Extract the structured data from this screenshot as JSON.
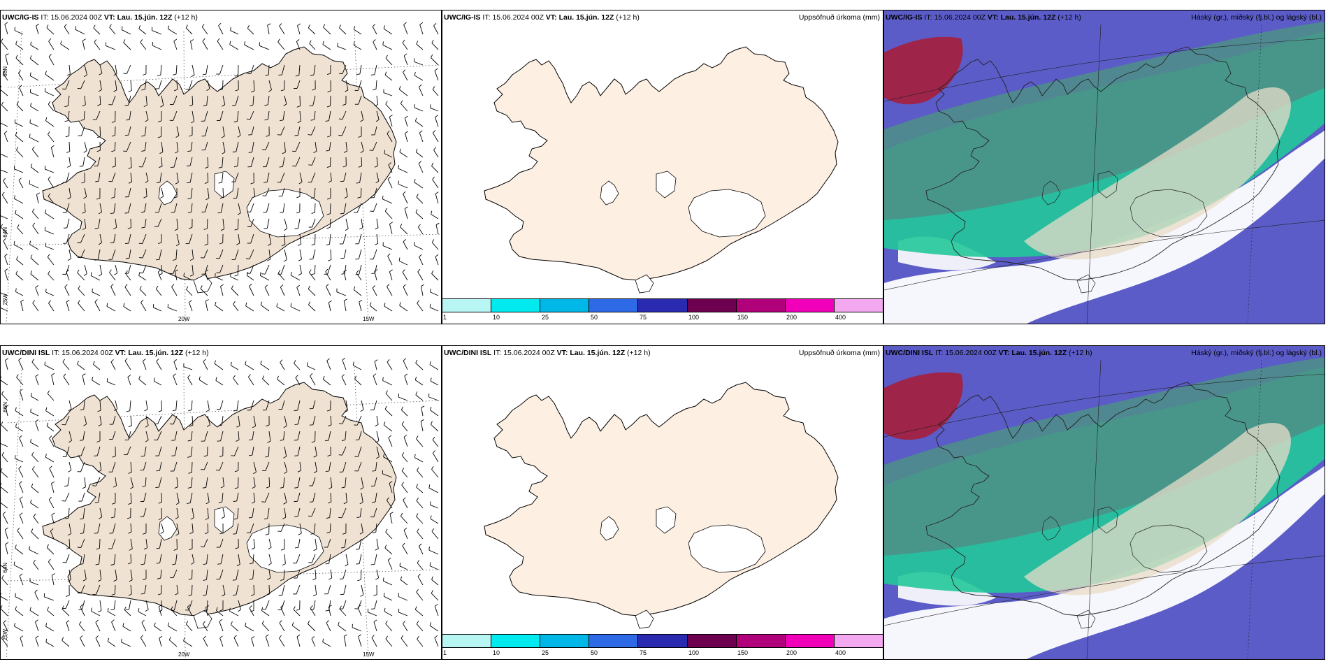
{
  "rows": [
    {
      "model": "UWC/IG-IS",
      "it_label": "IT:",
      "it_value": "15.06.2024 00Z",
      "vt_label": "VT:",
      "vt_value": "Lau. 15.jún. 12Z",
      "lead": "(+12 h)",
      "lon_labels": [
        "20W",
        "15W"
      ],
      "lat_labels": [
        "66N",
        "64N"
      ],
      "left_edge_label": "25W"
    },
    {
      "model": "UWC/DINI ISL",
      "it_label": "IT:",
      "it_value": "15.06.2024 00Z",
      "vt_label": "VT:",
      "vt_value": "Lau. 15.jún. 12Z",
      "lead": "(+12 h)",
      "lon_labels": [
        "20W",
        "15W"
      ],
      "lat_labels": [
        "66N",
        "64N"
      ],
      "left_edge_label": "25W"
    }
  ],
  "precip_panel": {
    "title": "Uppsöfnuð úrkoma (mm)",
    "colorbar": {
      "ticks": [
        "1",
        "10",
        "25",
        "50",
        "75",
        "100",
        "150",
        "200",
        "400"
      ],
      "colors": [
        "#b8f6f4",
        "#00eaf0",
        "#00b8e8",
        "#2f6ae6",
        "#2a2ab0",
        "#6e0050",
        "#b0007a",
        "#f000b8",
        "#f4a8f0"
      ]
    }
  },
  "cloud_panel": {
    "title": "Háský (gr.), miðský (fj.bl.) og lágský (bl.)"
  },
  "colors": {
    "land_wind": "#f0e2d3",
    "land_precip": "#fdf0e2",
    "cloud_low": "#5b5cc8",
    "cloud_mid": "#23c89a",
    "cloud_high": "#4e8f86",
    "cloud_red": "#a61e3c"
  }
}
